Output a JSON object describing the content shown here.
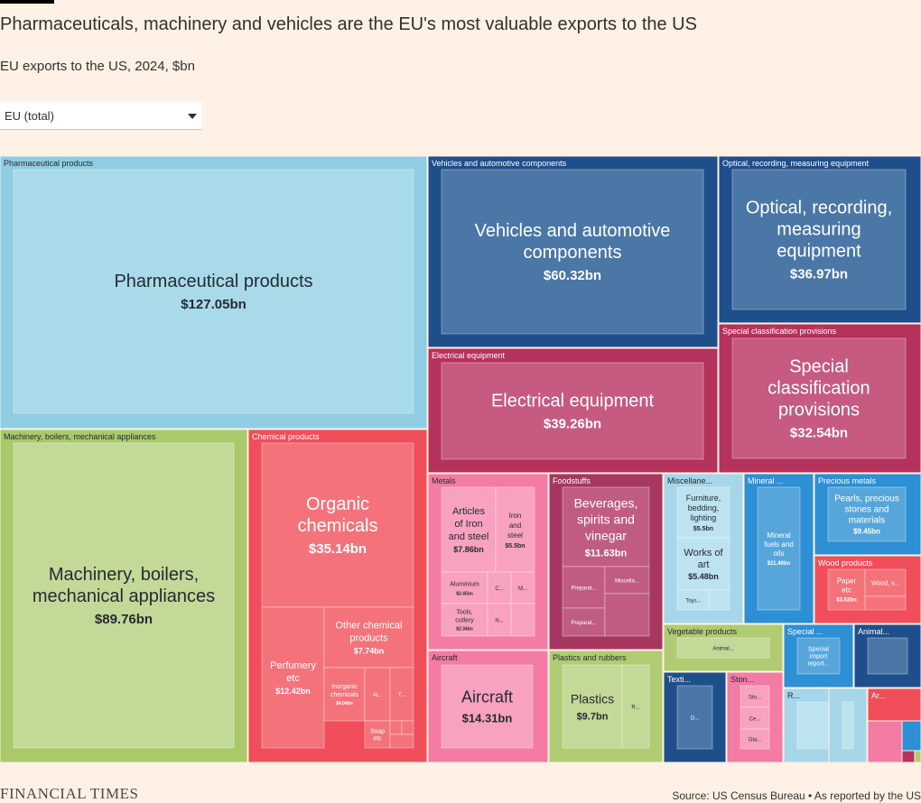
{
  "header": {
    "title": "Pharmaceuticals, machinery and vehicles are the EU's most valuable exports to the US",
    "subtitle": "EU exports to the US, 2024, $bn"
  },
  "selector": {
    "value": "EU (total)",
    "icon": "chevron-down-icon"
  },
  "footer": {
    "logo": "FINANCIAL TIMES",
    "source": "Source: US Census Bureau • As reported by the US"
  },
  "colors": {
    "light_blue": "#a5d8ea",
    "dark_blue": "#1f4f8b",
    "blue": "#2d8fd4",
    "crimson": "#b5325c",
    "red": "#f04e5a",
    "pink": "#f47ba3",
    "green": "#b0cc72",
    "maroon": "#a6375f",
    "background": "#fff1e5"
  },
  "chart_data": {
    "type": "treemap",
    "title": "Pharmaceuticals, machinery and vehicles are the EU's most valuable exports to the US",
    "subtitle": "EU exports to the US, 2024, $bn",
    "unit": "$bn",
    "groups": [
      {
        "name": "Pharmaceutical products",
        "children": [
          {
            "label": "Pharmaceutical products",
            "value_label": "$127.05bn",
            "value": 127.05
          }
        ]
      },
      {
        "name": "Vehicles and automotive components",
        "children": [
          {
            "label": "Vehicles and automotive components",
            "value_label": "$60.32bn",
            "value": 60.32
          }
        ]
      },
      {
        "name": "Optical, recording, measuring equipment",
        "children": [
          {
            "label": "Optical, recording, measuring equipment",
            "value_label": "$36.97bn",
            "value": 36.97
          }
        ]
      },
      {
        "name": "Electrical equipment",
        "children": [
          {
            "label": "Electrical equipment",
            "value_label": "$39.26bn",
            "value": 39.26
          }
        ]
      },
      {
        "name": "Special classification provisions",
        "children": [
          {
            "label": "Special classification provisions",
            "value_label": "$32.54bn",
            "value": 32.54
          }
        ]
      },
      {
        "name": "Machinery, boilers, mechanical appliances",
        "children": [
          {
            "label": "Machinery, boilers, mechanical appliances",
            "value_label": "$89.76bn",
            "value": 89.76
          }
        ]
      },
      {
        "name": "Chemical products",
        "children": [
          {
            "label": "Organic chemicals",
            "value_label": "$35.14bn",
            "value": 35.14
          },
          {
            "label": "Perfumery etc",
            "value_label": "$12.42bn",
            "value": 12.42
          },
          {
            "label": "Other chemical products",
            "value_label": "$7.74bn",
            "value": 7.74
          },
          {
            "label": "Inorganic chemicals",
            "value_label": "$4.04bn",
            "value": 4.04
          },
          {
            "label": "Al...",
            "value_label": "",
            "value": null
          },
          {
            "label": "T...",
            "value_label": "",
            "value": null
          },
          {
            "label": "Soap etc",
            "value_label": "",
            "value": null
          }
        ]
      },
      {
        "name": "Metals",
        "children": [
          {
            "label": "Articles of Iron and steel",
            "value_label": "$7.86bn",
            "value": 7.86
          },
          {
            "label": "Iron and steel",
            "value_label": "$5.5bn",
            "value": 5.5
          },
          {
            "label": "Aluminium",
            "value_label": "$2.45bn",
            "value": 2.45
          },
          {
            "label": "Tools, cutlery",
            "value_label": "$2.34bn",
            "value": 2.34
          },
          {
            "label": "C...",
            "value_label": "",
            "value": null
          },
          {
            "label": "M...",
            "value_label": "",
            "value": null
          },
          {
            "label": "N...",
            "value_label": "",
            "value": null
          }
        ]
      },
      {
        "name": "Foodstuffs",
        "children": [
          {
            "label": "Beverages, spirits and vinegar",
            "value_label": "$11.63bn",
            "value": 11.63
          },
          {
            "label": "Preparat...",
            "value_label": "",
            "value": null
          },
          {
            "label": "Miscella...",
            "value_label": "",
            "value": null
          },
          {
            "label": "Preparat...",
            "value_label": "",
            "value": null
          }
        ]
      },
      {
        "name": "Miscellane...",
        "children": [
          {
            "label": "Furniture, bedding, lighting",
            "value_label": "$5.5bn",
            "value": 5.5
          },
          {
            "label": "Works of art",
            "value_label": "$5.48bn",
            "value": 5.48
          },
          {
            "label": "Toys...",
            "value_label": "",
            "value": null
          }
        ]
      },
      {
        "name": "Mineral ...",
        "children": [
          {
            "label": "Mineral fuels and oils",
            "value_label": "$11.46bn",
            "value": 11.46
          }
        ]
      },
      {
        "name": "Precious metals",
        "children": [
          {
            "label": "Pearls, precious stones and materials",
            "value_label": "$9.45bn",
            "value": 9.45
          }
        ]
      },
      {
        "name": "Wood products",
        "children": [
          {
            "label": "Paper etc",
            "value_label": "$3.52bn",
            "value": 3.52
          },
          {
            "label": "Wood, v...",
            "value_label": "",
            "value": null
          }
        ]
      },
      {
        "name": "Aircraft",
        "children": [
          {
            "label": "Aircraft",
            "value_label": "$14.31bn",
            "value": 14.31
          }
        ]
      },
      {
        "name": "Plastics and rubbers",
        "children": [
          {
            "label": "Plastics",
            "value_label": "$9.7bn",
            "value": 9.7
          },
          {
            "label": "R...",
            "value_label": "",
            "value": null
          }
        ]
      },
      {
        "name": "Vegetable products",
        "children": [
          {
            "label": "Animal...",
            "value_label": "",
            "value": null
          }
        ]
      },
      {
        "name": "Special ...",
        "children": [
          {
            "label": "Special import report...",
            "value_label": "",
            "value": null
          }
        ]
      },
      {
        "name": "Animal...",
        "children": []
      },
      {
        "name": "Texti...",
        "children": [
          {
            "label": "O...",
            "value_label": "",
            "value": null
          }
        ]
      },
      {
        "name": "Ston...",
        "children": [
          {
            "label": "Sto...",
            "value_label": "",
            "value": null
          },
          {
            "label": "Ce...",
            "value_label": "",
            "value": null
          },
          {
            "label": "Gla...",
            "value_label": "",
            "value": null
          }
        ]
      },
      {
        "name": "R...",
        "children": []
      },
      {
        "name": "Ar...",
        "children": []
      }
    ]
  }
}
